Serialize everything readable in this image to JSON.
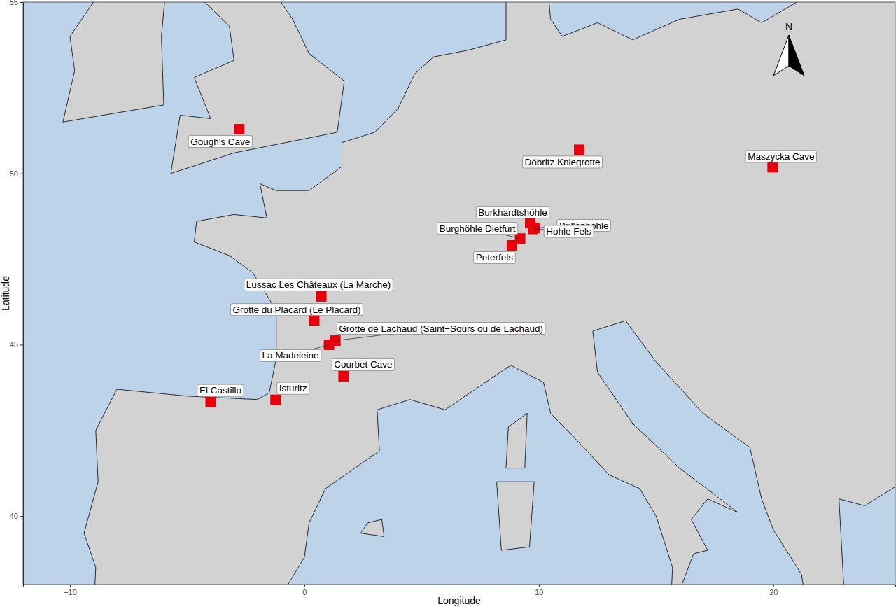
{
  "chart_data": {
    "type": "scatter",
    "x_label": "Longitude",
    "y_label": "Latitude",
    "xlim": [
      -12,
      25.2
    ],
    "ylim": [
      38,
      55
    ],
    "xticks": [
      {
        "value": -10,
        "label": "−10"
      },
      0,
      10,
      20
    ],
    "yticks": [
      40,
      45,
      50,
      55
    ],
    "labels": [
      "Gough's Cave",
      "Döbritz Kniegrotte",
      "Maszycka Cave",
      "Burkhardtshöhle",
      "Brillenhöhle",
      "Burghöhle Dietfurt",
      "Hohle Fels",
      "Peterfels",
      "Lussac Les Châteaux (La Marche)",
      "Grotte du Placard (Le Placard)",
      "Grotte de Lachaud (Saint−Sours ou de Lachaud)",
      "La Madeleine",
      "Courbet Cave",
      "El Castillo",
      "Isturitz"
    ],
    "x": [
      -2.78,
      11.72,
      19.97,
      9.63,
      9.83,
      9.2,
      9.75,
      8.85,
      0.72,
      0.42,
      1.32,
      1.05,
      1.67,
      -4.0,
      -1.23
    ],
    "values": [
      51.29,
      50.69,
      50.18,
      48.55,
      48.41,
      48.1,
      48.38,
      47.9,
      46.41,
      45.71,
      45.12,
      45.0,
      44.08,
      43.33,
      43.39
    ],
    "marker": "square",
    "color": "#e8000b",
    "grid": false,
    "north_arrow": "N"
  }
}
